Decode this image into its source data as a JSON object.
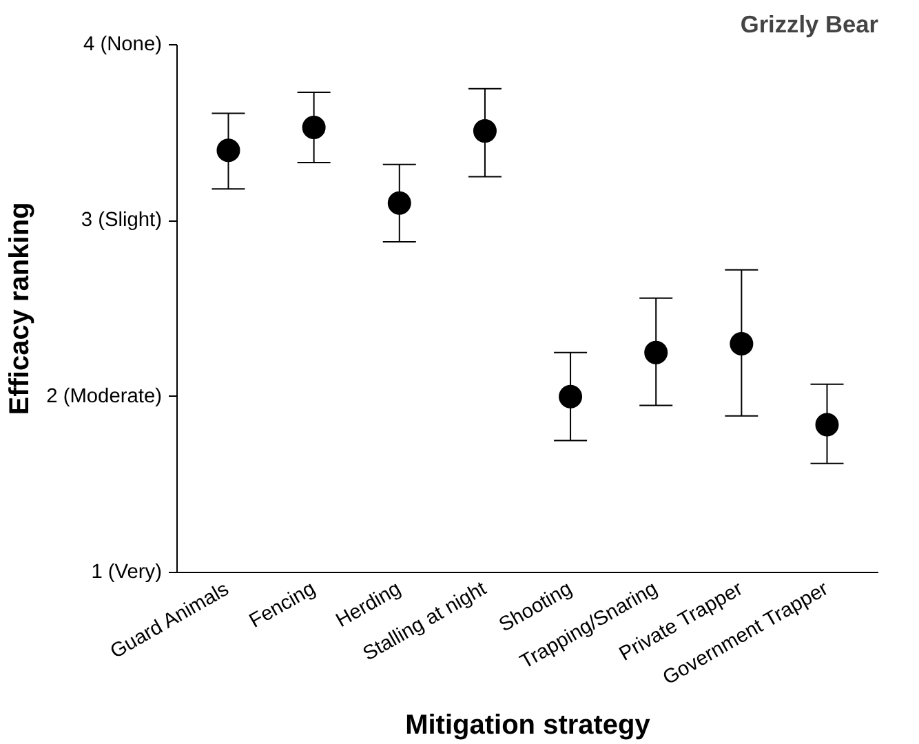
{
  "chart_data": {
    "type": "scatter",
    "title": "Grizzly Bear",
    "xlabel": "Mitigation strategy",
    "ylabel": "Efficacy ranking",
    "categories": [
      "Guard Animals",
      "Fencing",
      "Herding",
      "Stalling at night",
      "Shooting",
      "Trapping/Snaring",
      "Private Trapper",
      "Government Trapper"
    ],
    "values": [
      3.4,
      3.53,
      3.1,
      3.51,
      2.0,
      2.25,
      2.3,
      1.84
    ],
    "errors": [
      [
        3.18,
        3.61
      ],
      [
        3.33,
        3.73
      ],
      [
        2.88,
        3.32
      ],
      [
        3.25,
        3.75
      ],
      [
        1.75,
        2.25
      ],
      [
        1.95,
        2.56
      ],
      [
        1.89,
        2.72
      ],
      [
        1.62,
        2.07
      ]
    ],
    "color": "#000000",
    "marker": "circle",
    "ylim": [
      1,
      4
    ],
    "yticks": [
      {
        "value": 1,
        "label": "1 (Very)"
      },
      {
        "value": 2,
        "label": "2 (Moderate)"
      },
      {
        "value": 3,
        "label": "3 (Slight)"
      },
      {
        "value": 4,
        "label": "4 (None)"
      }
    ],
    "grid": false
  }
}
